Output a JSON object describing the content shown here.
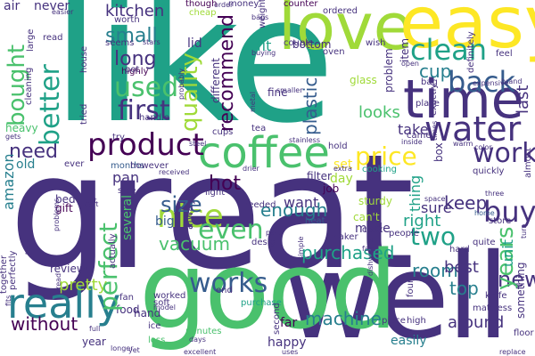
{
  "words": {
    "great": "great",
    "like": "like",
    "well": "well",
    "good": "good",
    "love": "love",
    "easy": "easy",
    "time": "time",
    "coffee": "coffee",
    "product": "product",
    "really": "really",
    "works": "works",
    "water": "water",
    "clean": "clean",
    "nice": "nice",
    "used": "used",
    "back": "back",
    "first": "first",
    "price": "price",
    "work": "work",
    "buy": "buy",
    "perfect": "perfect",
    "better": "better",
    "bought": "bought",
    "quality": "quality",
    "recommend": "recommend",
    "size": "size",
    "two": "two",
    "even": "even",
    "years": "years",
    "small": "small",
    "long": "long",
    "kitchen": "kitchen",
    "need": "need",
    "plastic": "plastic",
    "looks": "looks",
    "cup": "cup",
    "hot": "hot",
    "vacuum": "vacuum",
    "enough": "enough",
    "purchased": "purchased",
    "keep": "keep",
    "room": "room",
    "right": "right",
    "top": "top",
    "best": "best",
    "around": "around",
    "machine": "machine",
    "new": "new",
    "without": "without",
    "pretty": "pretty",
    "amazon": "amazon",
    "easily": "easily",
    "happy": "happy",
    "want": "want",
    "day": "day",
    "pan": "pan",
    "set": "set",
    "sure": "sure",
    "take": "take",
    "thing": "thing",
    "unit": "unit",
    "last": "last",
    "old": "old",
    "fit": "fit",
    "lid": "lid",
    "never": "never",
    "made": "made",
    "far": "far",
    "ice": "ice",
    "hand": "hand",
    "big": "big",
    "reviews": "reviews",
    "glass": "glass",
    "fine": "fine",
    "problem": "problem",
    "food": "food",
    "store": "store",
    "job": "job",
    "light": "light",
    "filter": "filter",
    "heavy": "heavy",
    "air": "air",
    "gift": "gift",
    "bed": "bed",
    "bottom": "bottom",
    "handle": "handle",
    "months": "months",
    "worth": "worth",
    "seems": "seems",
    "highly": "highly",
    "item": "item",
    "place": "place",
    "box": "box",
    "fan": "fan",
    "year": "year",
    "less": "less",
    "minutes": "minutes",
    "purchase": "purchase",
    "heat": "heat",
    "cups": "cups",
    "tea": "tea",
    "always": "always",
    "quite": "quite",
    "hard": "hard",
    "something": "something",
    "definitely": "definitely",
    "several": "several",
    "different": "different",
    "needed": "needed",
    "design": "design",
    "hold": "hold",
    "sturdy": "sturdy",
    "cook": "cook",
    "maker": "maker",
    "cooking": "cooking",
    "ever": "ever",
    "house": "house",
    "large": "large",
    "read": "read",
    "cleaning": "cleaning",
    "tried": "tried",
    "pot": "pot",
    "though": "though",
    "money": "money",
    "weight": "weight",
    "counter": "counter",
    "ordered": "ordered",
    "oven": "oven",
    "couple": "couple",
    "wish": "wish",
    "feel": "feel",
    "easier": "easier",
    "however": "however",
    "side": "side",
    "actually": "actually",
    "together": "together",
    "perfectly": "perfectly",
    "fits": "fits",
    "took": "took",
    "problems": "problems",
    "bread": "bread",
    "soft": "soft",
    "model": "model",
    "worked": "worked",
    "end": "end",
    "second": "second",
    "simple": "simple",
    "pans": "pans",
    "fast": "fast",
    "dishwasher": "dishwasher",
    "piece": "piece",
    "high": "high",
    "knife": "knife",
    "mattress": "mattress",
    "floor": "floor",
    "people": "people",
    "found": "found",
    "exactly": "exactly",
    "can't": "can't",
    "home": "home",
    "space": "space",
    "three": "three",
    "turn": "turn",
    "almost": "almost",
    "color": "color",
    "quickly": "quickly",
    "extra": "extra",
    "received": "received",
    "steel": "steel",
    "stainless": "stainless",
    "metal": "metal",
    "smaller": "smaller",
    "buying": "buying",
    "bags": "bags",
    "bag": "bag",
    "open": "open",
    "expensive": "expensive",
    "cheap": "cheap",
    "probably": "probably",
    "stars": "stars",
    "try": "try",
    "cut": "cut",
    "part": "part",
    "inside": "inside",
    "came": "came",
    "times": "times",
    "warm": "warm",
    "longer": "longer",
    "excellent": "excellent",
    "uses": "uses",
    "days": "days",
    "order": "order",
    "replace": "replace",
    "full": "full",
    "yet": "yet",
    "gets": "gets",
    "drier": "drier",
    "brand": "brand"
  }
}
